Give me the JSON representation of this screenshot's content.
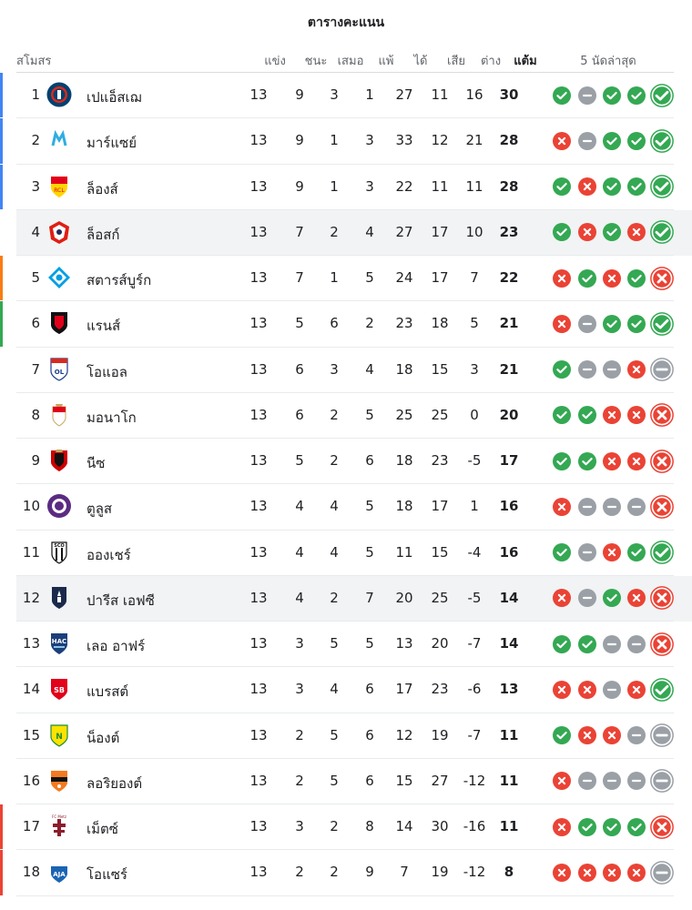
{
  "title": "ตารางคะแนน",
  "headers": {
    "club": "สโมสร",
    "played": "แข่ง",
    "won": "ชนะ",
    "drawn": "เสมอ",
    "lost": "แพ้",
    "gf": "ได้",
    "ga": "เสีย",
    "gd": "ต่าง",
    "pts": "แต้ม",
    "form": "5 นัดล่าสุด"
  },
  "colors": {
    "win": "#34a853",
    "loss": "#ea4335",
    "draw": "#9aa0a6",
    "champions": "#4285f4",
    "europa": "#fa7b17",
    "conference": "#34a853",
    "relegation_playoff": "#ea4335"
  },
  "rows": [
    {
      "pos": "1",
      "team": "เปแอ็สเฌ",
      "p": "13",
      "w": "9",
      "d": "3",
      "l": "1",
      "gf": "27",
      "ga": "11",
      "gd": "16",
      "pts": "30",
      "form": [
        "W",
        "D",
        "W",
        "W",
        "W"
      ],
      "zone": "champions",
      "logo": "psg-logo",
      "highlight": false
    },
    {
      "pos": "2",
      "team": "มาร์แซย์",
      "p": "13",
      "w": "9",
      "d": "1",
      "l": "3",
      "gf": "33",
      "ga": "12",
      "gd": "21",
      "pts": "28",
      "form": [
        "L",
        "D",
        "W",
        "W",
        "W"
      ],
      "zone": "champions",
      "logo": "marseille-logo",
      "highlight": false
    },
    {
      "pos": "3",
      "team": "ล็องส์",
      "p": "13",
      "w": "9",
      "d": "1",
      "l": "3",
      "gf": "22",
      "ga": "11",
      "gd": "11",
      "pts": "28",
      "form": [
        "W",
        "L",
        "W",
        "W",
        "W"
      ],
      "zone": "champions",
      "logo": "lens-logo",
      "highlight": false
    },
    {
      "pos": "4",
      "team": "ล็อสก์",
      "p": "13",
      "w": "7",
      "d": "2",
      "l": "4",
      "gf": "27",
      "ga": "17",
      "gd": "10",
      "pts": "23",
      "form": [
        "W",
        "L",
        "W",
        "L",
        "W"
      ],
      "zone": "",
      "logo": "lille-logo",
      "highlight": true
    },
    {
      "pos": "5",
      "team": "สตารส์บูร์ก",
      "p": "13",
      "w": "7",
      "d": "1",
      "l": "5",
      "gf": "24",
      "ga": "17",
      "gd": "7",
      "pts": "22",
      "form": [
        "L",
        "W",
        "L",
        "W",
        "L"
      ],
      "zone": "europa",
      "logo": "strasbourg-logo",
      "highlight": false
    },
    {
      "pos": "6",
      "team": "แรนส์",
      "p": "13",
      "w": "5",
      "d": "6",
      "l": "2",
      "gf": "23",
      "ga": "18",
      "gd": "5",
      "pts": "21",
      "form": [
        "L",
        "D",
        "W",
        "W",
        "W"
      ],
      "zone": "conference",
      "logo": "rennes-logo",
      "highlight": false
    },
    {
      "pos": "7",
      "team": "โอแอล",
      "p": "13",
      "w": "6",
      "d": "3",
      "l": "4",
      "gf": "18",
      "ga": "15",
      "gd": "3",
      "pts": "21",
      "form": [
        "W",
        "D",
        "D",
        "L",
        "D"
      ],
      "zone": "",
      "logo": "lyon-logo",
      "highlight": false
    },
    {
      "pos": "8",
      "team": "มอนาโก",
      "p": "13",
      "w": "6",
      "d": "2",
      "l": "5",
      "gf": "25",
      "ga": "25",
      "gd": "0",
      "pts": "20",
      "form": [
        "W",
        "W",
        "L",
        "L",
        "L"
      ],
      "zone": "",
      "logo": "monaco-logo",
      "highlight": false
    },
    {
      "pos": "9",
      "team": "นีซ",
      "p": "13",
      "w": "5",
      "d": "2",
      "l": "6",
      "gf": "18",
      "ga": "23",
      "gd": "-5",
      "pts": "17",
      "form": [
        "W",
        "W",
        "L",
        "L",
        "L"
      ],
      "zone": "",
      "logo": "nice-logo",
      "highlight": false
    },
    {
      "pos": "10",
      "team": "ตูลูส",
      "p": "13",
      "w": "4",
      "d": "4",
      "l": "5",
      "gf": "18",
      "ga": "17",
      "gd": "1",
      "pts": "16",
      "form": [
        "L",
        "D",
        "D",
        "D",
        "L"
      ],
      "zone": "",
      "logo": "toulouse-logo",
      "highlight": false
    },
    {
      "pos": "11",
      "team": "อองเชร์",
      "p": "13",
      "w": "4",
      "d": "4",
      "l": "5",
      "gf": "11",
      "ga": "15",
      "gd": "-4",
      "pts": "16",
      "form": [
        "W",
        "D",
        "L",
        "W",
        "W"
      ],
      "zone": "",
      "logo": "angers-logo",
      "highlight": false
    },
    {
      "pos": "12",
      "team": "ปารีส เอฟซี",
      "p": "13",
      "w": "4",
      "d": "2",
      "l": "7",
      "gf": "20",
      "ga": "25",
      "gd": "-5",
      "pts": "14",
      "form": [
        "L",
        "D",
        "W",
        "L",
        "L"
      ],
      "zone": "",
      "logo": "parisfc-logo",
      "highlight": true
    },
    {
      "pos": "13",
      "team": "เลอ อาฟร์",
      "p": "13",
      "w": "3",
      "d": "5",
      "l": "5",
      "gf": "13",
      "ga": "20",
      "gd": "-7",
      "pts": "14",
      "form": [
        "W",
        "W",
        "D",
        "D",
        "L"
      ],
      "zone": "",
      "logo": "lehavre-logo",
      "highlight": false
    },
    {
      "pos": "14",
      "team": "แบรสต์",
      "p": "13",
      "w": "3",
      "d": "4",
      "l": "6",
      "gf": "17",
      "ga": "23",
      "gd": "-6",
      "pts": "13",
      "form": [
        "L",
        "L",
        "D",
        "L",
        "W"
      ],
      "zone": "",
      "logo": "brest-logo",
      "highlight": false
    },
    {
      "pos": "15",
      "team": "น็องต์",
      "p": "13",
      "w": "2",
      "d": "5",
      "l": "6",
      "gf": "12",
      "ga": "19",
      "gd": "-7",
      "pts": "11",
      "form": [
        "W",
        "L",
        "L",
        "D",
        "D"
      ],
      "zone": "",
      "logo": "nantes-logo",
      "highlight": false
    },
    {
      "pos": "16",
      "team": "ลอริยองต์",
      "p": "13",
      "w": "2",
      "d": "5",
      "l": "6",
      "gf": "15",
      "ga": "27",
      "gd": "-12",
      "pts": "11",
      "form": [
        "L",
        "D",
        "D",
        "D",
        "D"
      ],
      "zone": "",
      "logo": "lorient-logo",
      "highlight": false
    },
    {
      "pos": "17",
      "team": "เม็ตซ์",
      "p": "13",
      "w": "3",
      "d": "2",
      "l": "8",
      "gf": "14",
      "ga": "30",
      "gd": "-16",
      "pts": "11",
      "form": [
        "L",
        "W",
        "W",
        "W",
        "L"
      ],
      "zone": "relegation_playoff",
      "logo": "metz-logo",
      "highlight": false
    },
    {
      "pos": "18",
      "team": "โอแซร์",
      "p": "13",
      "w": "2",
      "d": "2",
      "l": "9",
      "gf": "7",
      "ga": "19",
      "gd": "-12",
      "pts": "8",
      "form": [
        "L",
        "L",
        "L",
        "L",
        "D"
      ],
      "zone": "relegation_playoff",
      "logo": "auxerre-logo",
      "highlight": false
    }
  ]
}
